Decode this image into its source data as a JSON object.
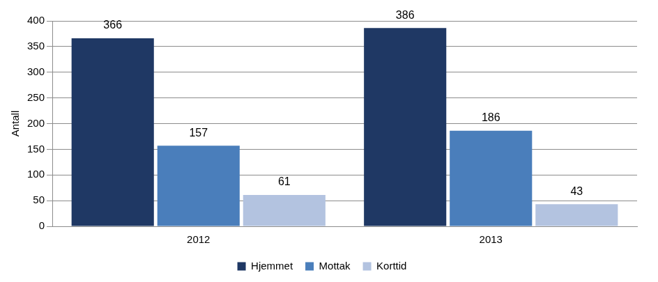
{
  "chart_data": {
    "type": "bar",
    "categories": [
      "2012",
      "2013"
    ],
    "series": [
      {
        "name": "Hjemmet",
        "color": "#1f3864",
        "values": [
          366,
          386
        ]
      },
      {
        "name": "Mottak",
        "color": "#4a7ebb",
        "values": [
          157,
          186
        ]
      },
      {
        "name": "Korttid",
        "color": "#b3c3e0",
        "values": [
          61,
          43
        ]
      }
    ],
    "y_label": "Antall",
    "ylim": [
      0,
      400
    ],
    "yticks": [
      0,
      50,
      100,
      150,
      200,
      250,
      300,
      350,
      400
    ],
    "grid": true,
    "legend": "bottom",
    "data_labels": true
  }
}
